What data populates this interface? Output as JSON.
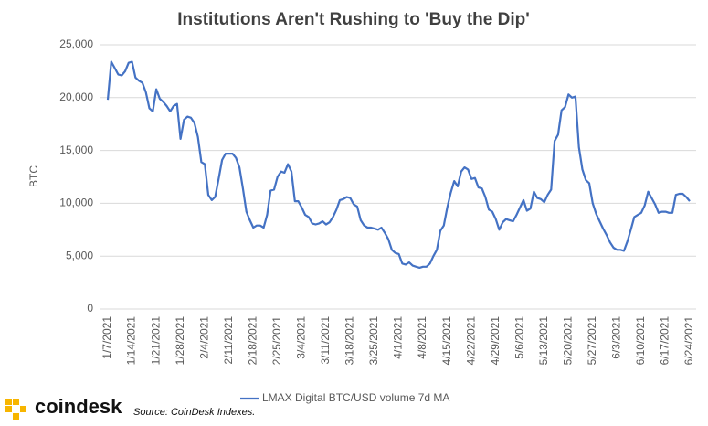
{
  "chart_data": {
    "type": "line",
    "title": "Institutions Aren't Rushing to 'Buy the Dip'",
    "y_label": "BTC",
    "categories": [
      "1/7/2021",
      null,
      null,
      null,
      null,
      null,
      null,
      "1/14/2021",
      null,
      null,
      null,
      null,
      null,
      null,
      "1/21/2021",
      null,
      null,
      null,
      null,
      null,
      null,
      "1/28/2021",
      null,
      null,
      null,
      null,
      null,
      null,
      "2/4/2021",
      null,
      null,
      null,
      null,
      null,
      null,
      "2/11/2021",
      null,
      null,
      null,
      null,
      null,
      null,
      "2/18/2021",
      null,
      null,
      null,
      null,
      null,
      null,
      "2/25/2021",
      null,
      null,
      null,
      null,
      null,
      null,
      "3/4/2021",
      null,
      null,
      null,
      null,
      null,
      null,
      "3/11/2021",
      null,
      null,
      null,
      null,
      null,
      null,
      "3/18/2021",
      null,
      null,
      null,
      null,
      null,
      null,
      "3/25/2021",
      null,
      null,
      null,
      null,
      null,
      null,
      "4/1/2021",
      null,
      null,
      null,
      null,
      null,
      null,
      "4/8/2021",
      null,
      null,
      null,
      null,
      null,
      null,
      "4/15/2021",
      null,
      null,
      null,
      null,
      null,
      null,
      "4/22/2021",
      null,
      null,
      null,
      null,
      null,
      null,
      "4/29/2021",
      null,
      null,
      null,
      null,
      null,
      null,
      "5/6/2021",
      null,
      null,
      null,
      null,
      null,
      null,
      "5/13/2021",
      null,
      null,
      null,
      null,
      null,
      null,
      "5/20/2021",
      null,
      null,
      null,
      null,
      null,
      null,
      "5/27/2021",
      null,
      null,
      null,
      null,
      null,
      null,
      "6/3/2021",
      null,
      null,
      null,
      null,
      null,
      null,
      "6/10/2021",
      null,
      null,
      null,
      null,
      null,
      null,
      "6/17/2021",
      null,
      null,
      null,
      null,
      null,
      null,
      "6/24/2021"
    ],
    "series": [
      {
        "name": "LMAX Digital BTC/USD volume 7d MA",
        "color": "#4472c4",
        "values": [
          19800,
          23400,
          22800,
          22200,
          22100,
          22500,
          23300,
          23400,
          21900,
          21600,
          21400,
          20500,
          19000,
          18700,
          20800,
          19900,
          19600,
          19200,
          18700,
          19200,
          19400,
          16100,
          17900,
          18200,
          18100,
          17600,
          16300,
          13900,
          13700,
          10800,
          10300,
          10600,
          12300,
          14100,
          14700,
          14700,
          14700,
          14300,
          13400,
          11400,
          9200,
          8400,
          7700,
          7900,
          7900,
          7700,
          8900,
          11200,
          11300,
          12500,
          13000,
          12900,
          13700,
          13000,
          10200,
          10200,
          9600,
          8900,
          8700,
          8100,
          8000,
          8100,
          8300,
          8000,
          8200,
          8700,
          9400,
          10300,
          10400,
          10600,
          10500,
          9900,
          9700,
          8400,
          7900,
          7700,
          7700,
          7600,
          7500,
          7700,
          7200,
          6600,
          5600,
          5300,
          5200,
          4300,
          4200,
          4400,
          4100,
          4000,
          3900,
          4000,
          4000,
          4300,
          5000,
          5600,
          7400,
          7900,
          9600,
          11000,
          12100,
          11600,
          13000,
          13400,
          13200,
          12300,
          12400,
          11500,
          11400,
          10600,
          9400,
          9200,
          8500,
          7500,
          8200,
          8500,
          8400,
          8300,
          8900,
          9600,
          10300,
          9300,
          9500,
          11100,
          10500,
          10400,
          10100,
          10800,
          11300,
          15900,
          16500,
          18800,
          19100,
          20300,
          20000,
          20100,
          15300,
          13200,
          12200,
          11900,
          10000,
          9000,
          8300,
          7600,
          7000,
          6300,
          5800,
          5600,
          5600,
          5500,
          6400,
          7500,
          8700,
          8900,
          9100,
          9800,
          11100,
          10500,
          9900,
          9100,
          9200,
          9200,
          9100,
          9100,
          10800,
          10900,
          10900,
          10600,
          10200
        ]
      }
    ],
    "ylim": [
      0,
      25000
    ],
    "yticks": [
      0,
      {
        "value": 5000,
        "label": "5,000"
      },
      {
        "value": 10000,
        "label": "10,000"
      },
      {
        "value": 15000,
        "label": "15,000"
      },
      {
        "value": 20000,
        "label": "20,000"
      },
      {
        "value": 25000,
        "label": "25,000"
      }
    ],
    "grid": true,
    "legend": "bottom"
  },
  "footer": {
    "brand": "coindesk",
    "source": "Source: CoinDesk Indexes."
  }
}
